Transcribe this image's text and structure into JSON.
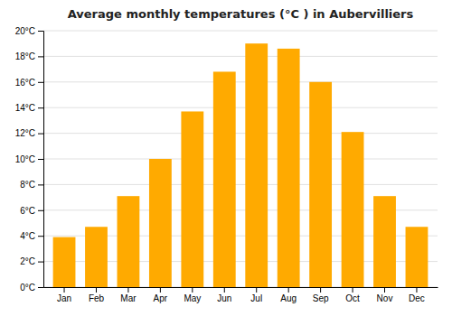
{
  "chart_data": {
    "type": "bar",
    "title": "Average monthly temperatures (°C ) in Aubervilliers",
    "categories": [
      "Jan",
      "Feb",
      "Mar",
      "Apr",
      "May",
      "Jun",
      "Jul",
      "Aug",
      "Sep",
      "Oct",
      "Nov",
      "Dec"
    ],
    "values": [
      3.9,
      4.7,
      7.1,
      10.0,
      13.7,
      16.8,
      19.0,
      18.6,
      16.0,
      12.1,
      7.1,
      4.7
    ],
    "color": "#FFAA00",
    "ylim": [
      0,
      20
    ],
    "yticks": [
      {
        "value": 0,
        "label": "0°C"
      },
      {
        "value": 2,
        "label": "2°C"
      },
      {
        "value": 4,
        "label": "4°C"
      },
      {
        "value": 6,
        "label": "6°C"
      },
      {
        "value": 8,
        "label": "8°C"
      },
      {
        "value": 10,
        "label": "10°C"
      },
      {
        "value": 12,
        "label": "12°C"
      },
      {
        "value": 14,
        "label": "14°C"
      },
      {
        "value": 16,
        "label": "16°C"
      },
      {
        "value": 18,
        "label": "18°C"
      },
      {
        "value": 20,
        "label": "20°C"
      }
    ],
    "grid": true
  }
}
